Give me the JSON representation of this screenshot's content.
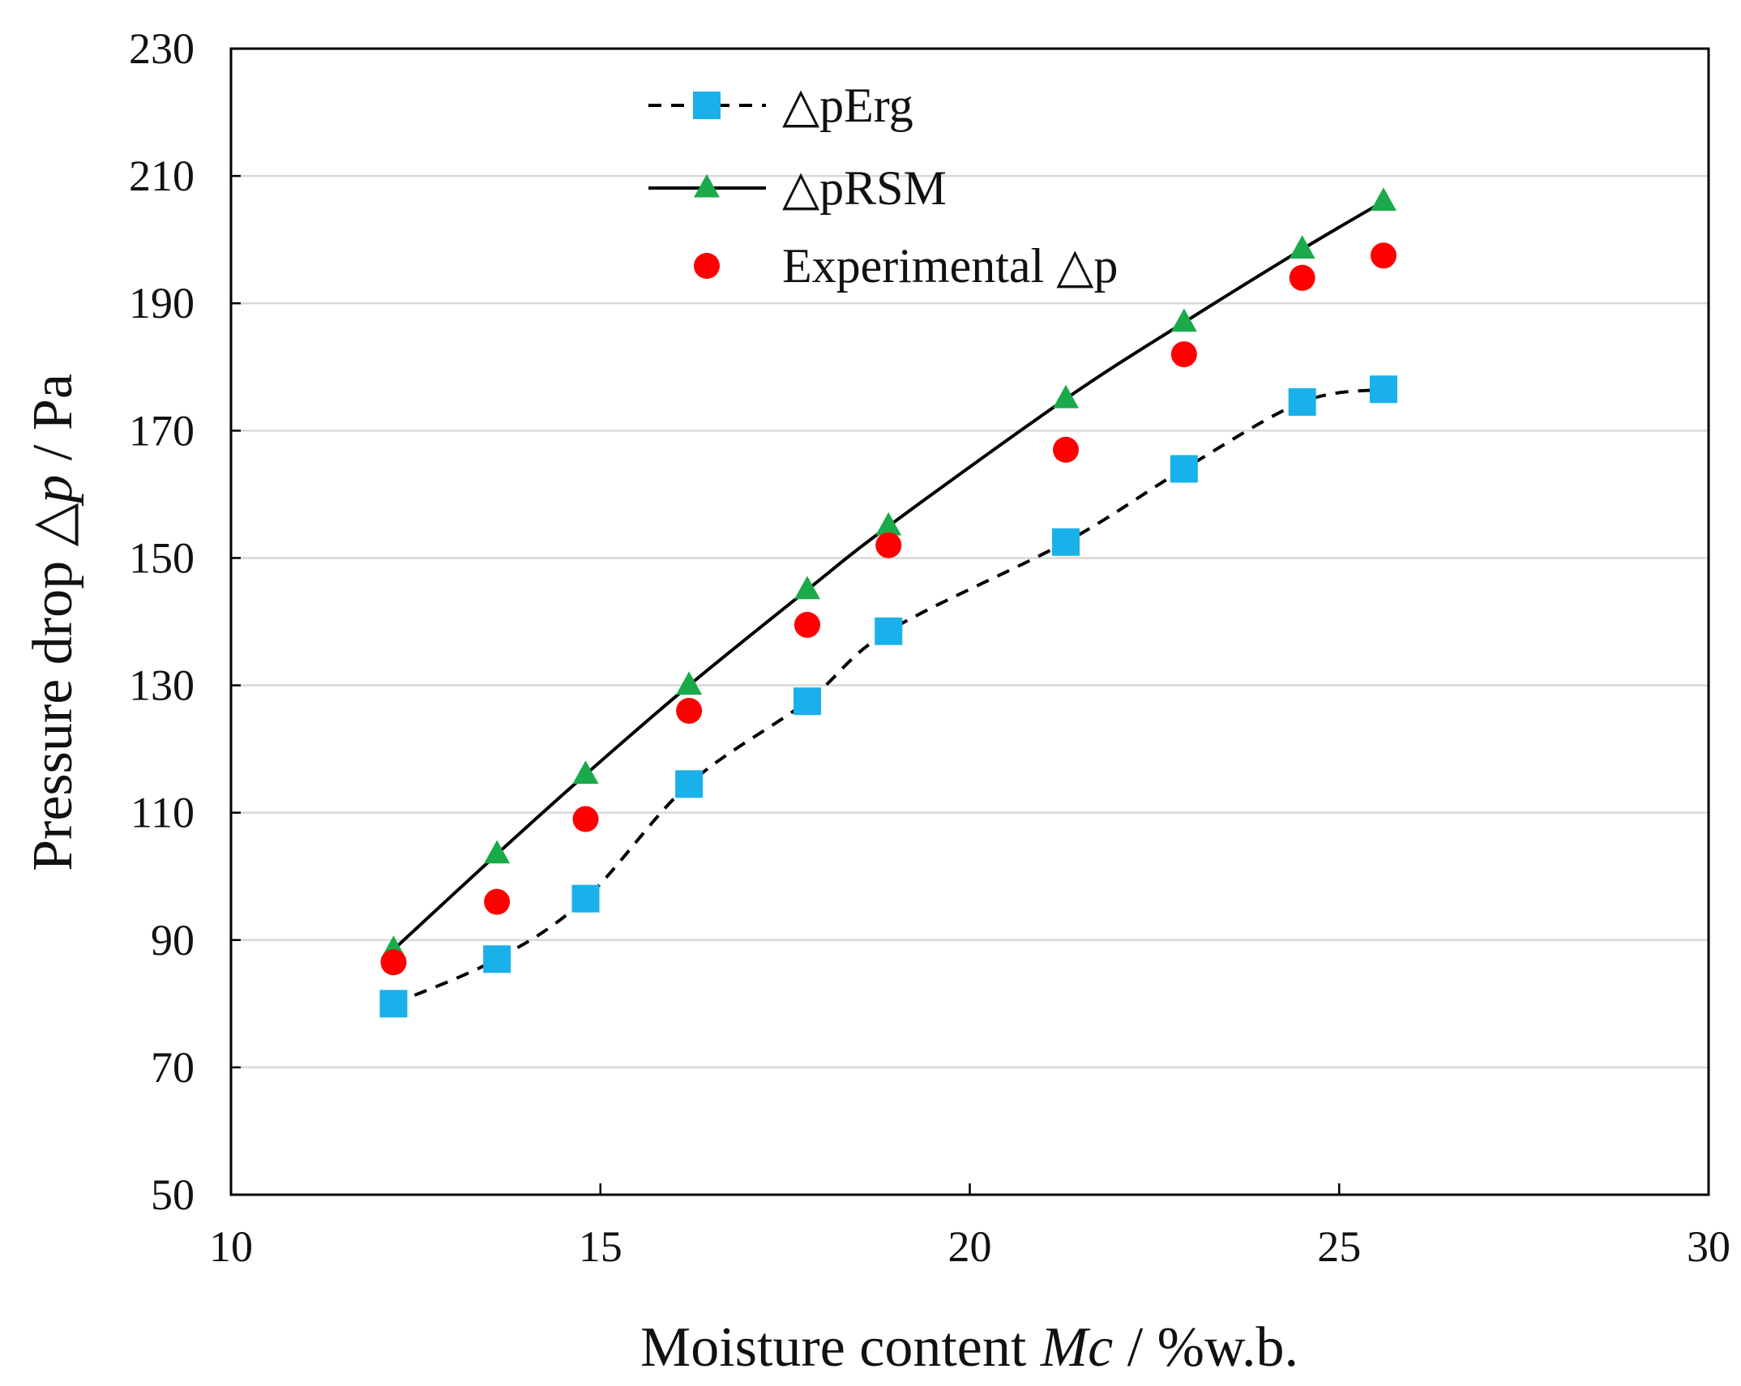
{
  "chart_data": {
    "type": "scatter",
    "xlim": [
      10,
      30
    ],
    "ylim": [
      50,
      230
    ],
    "x_ticks": [
      10,
      15,
      20,
      25,
      30
    ],
    "y_ticks": [
      50,
      70,
      90,
      110,
      130,
      150,
      170,
      190,
      210,
      230
    ],
    "grid": "horizontal",
    "legend_position": "top-left",
    "xlabel": {
      "prefix": "Moisture content ",
      "italic": "Mc",
      "suffix": " / %w.b."
    },
    "ylabel": {
      "prefix": "Pressure drop ",
      "symbol": "△",
      "italic": "p",
      "suffix": " / Pa"
    },
    "series": [
      {
        "name": "△pErg",
        "style": "dashed-line-square",
        "color": "#1ab0ea",
        "line_color": "#000000",
        "x": [
          12.2,
          13.6,
          14.8,
          16.2,
          17.8,
          18.9,
          21.3,
          22.9,
          24.5,
          25.6
        ],
        "y": [
          80,
          87,
          96.5,
          114.5,
          127.5,
          138.5,
          152.5,
          164,
          174.5,
          176.5
        ]
      },
      {
        "name": "△pRSM",
        "style": "solid-line-triangle",
        "color": "#1aaa4a",
        "line_color": "#000000",
        "x": [
          12.2,
          13.6,
          14.8,
          16.2,
          17.8,
          18.9,
          21.3,
          22.9,
          24.5,
          25.6
        ],
        "y": [
          88.5,
          103.5,
          116,
          130,
          145,
          155,
          175,
          187,
          198.5,
          206
        ]
      },
      {
        "name": "Experimental △p",
        "style": "marker-circle",
        "color": "#ff0000",
        "x": [
          12.2,
          13.6,
          14.8,
          16.2,
          17.8,
          18.9,
          21.3,
          22.9,
          24.5,
          25.6
        ],
        "y": [
          86.5,
          96,
          109,
          126,
          139.5,
          152,
          167,
          182,
          194,
          197.5
        ]
      }
    ]
  }
}
